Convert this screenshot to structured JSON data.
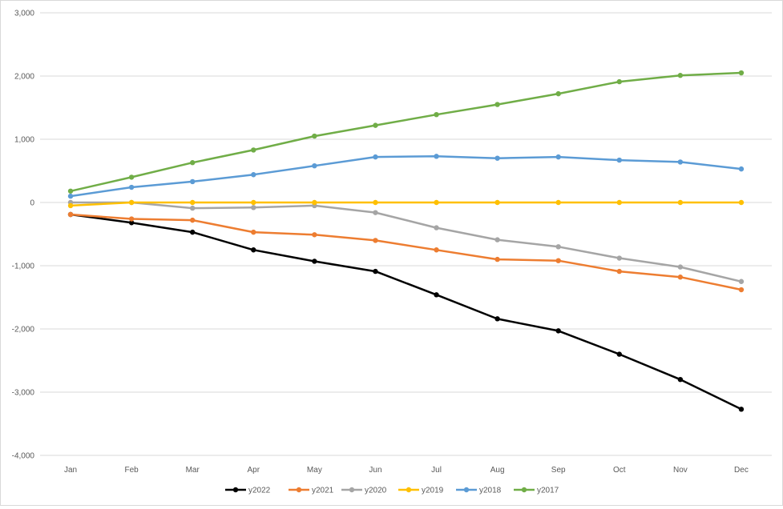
{
  "chart_data": {
    "type": "line",
    "categories": [
      "Jan",
      "Feb",
      "Mar",
      "Apr",
      "May",
      "Jun",
      "Jul",
      "Aug",
      "Sep",
      "Oct",
      "Nov",
      "Dec"
    ],
    "y_ticks": [
      3000,
      2000,
      1000,
      0,
      -1000,
      -2000,
      -3000,
      -4000
    ],
    "y_tick_labels": [
      "3,000",
      "2,000",
      "1,000",
      "0",
      "-1,000",
      "-2,000",
      "-3,000",
      "-4,000"
    ],
    "ylim": [
      -4000,
      3000
    ],
    "grid": true,
    "legend_position": "bottom",
    "series": [
      {
        "name": "y2022",
        "color": "#000000",
        "values": [
          -190,
          -320,
          -470,
          -750,
          -930,
          -1090,
          -1460,
          -1840,
          -2030,
          -2400,
          -2800,
          -3270
        ]
      },
      {
        "name": "y2021",
        "color": "#ED7D31",
        "values": [
          -190,
          -260,
          -280,
          -470,
          -510,
          -600,
          -750,
          -900,
          -920,
          -1090,
          -1180,
          -1380
        ]
      },
      {
        "name": "y2020",
        "color": "#A5A5A5",
        "values": [
          0,
          0,
          -90,
          -80,
          -50,
          -160,
          -400,
          -590,
          -700,
          -880,
          -1020,
          -1250
        ]
      },
      {
        "name": "y2019",
        "color": "#FFC000",
        "values": [
          -50,
          0,
          0,
          0,
          0,
          0,
          0,
          0,
          0,
          0,
          0,
          0
        ]
      },
      {
        "name": "y2018",
        "color": "#5B9BD5",
        "values": [
          100,
          240,
          330,
          440,
          580,
          720,
          730,
          700,
          720,
          670,
          640,
          530
        ]
      },
      {
        "name": "y2017",
        "color": "#70AD47",
        "values": [
          180,
          400,
          630,
          830,
          1050,
          1220,
          1390,
          1550,
          1720,
          1910,
          2010,
          2050
        ]
      }
    ]
  }
}
